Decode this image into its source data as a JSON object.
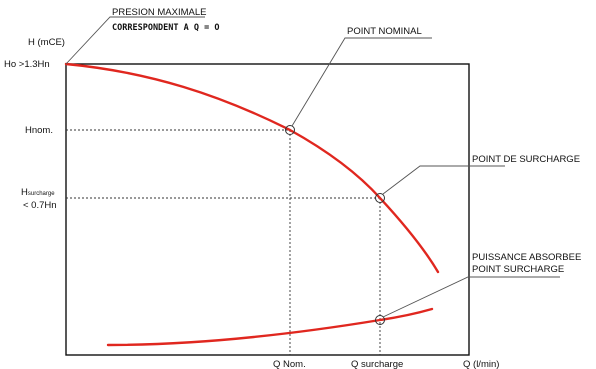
{
  "diagram": {
    "top_note": {
      "line1": "PRESION MAXIMALE",
      "line2": "CORRESPONDENT A Q = O"
    },
    "y_axis_title": "H (mCE)",
    "x_axis_title": "Q (l/min)",
    "y_ticks": {
      "h0": "Ho >1.3Hn",
      "hnom": "Hnom.",
      "hsurcharge_main": "H",
      "hsurcharge_sub": "surcharge",
      "hsurcharge_line2": "< 0.7Hn"
    },
    "x_ticks": {
      "qnom": "Q Nom.",
      "qsurcharge": "Q surcharge"
    },
    "callouts": {
      "point_nominal": "POINT NOMINAL",
      "point_surcharge": "POINT DE SURCHARGE",
      "puissance_line1": "PUISSANCE ABSORBEE",
      "puissance_line2": "POINT SURCHARGE"
    },
    "colors": {
      "curve": "#e0271f",
      "axes": "#111111",
      "dashed": "#333333"
    }
  }
}
